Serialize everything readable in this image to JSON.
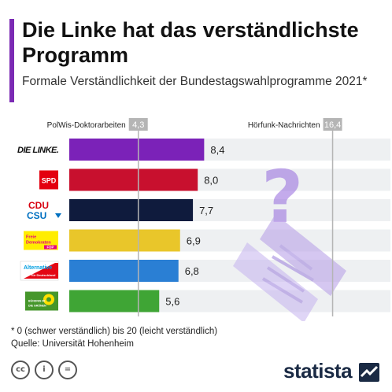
{
  "header": {
    "title": "Die Linke hat das verständlichste Programm",
    "subtitle": "Formale Verständlichkeit der Bundestagswahlprogramme 2021*"
  },
  "chart_data": {
    "type": "bar",
    "orientation": "horizontal",
    "categories": [
      "Die Linke",
      "SPD",
      "CDU/CSU",
      "FDP",
      "AfD",
      "Bündnis 90/Die Grünen"
    ],
    "values": [
      8.4,
      8.0,
      7.7,
      6.9,
      6.8,
      5.6
    ],
    "value_labels": [
      "8,4",
      "8,0",
      "7,7",
      "6,9",
      "6,8",
      "5,6"
    ],
    "bar_colors": [
      "#7b22b8",
      "#c8102e",
      "#0f1b3d",
      "#e9c62a",
      "#2a7fd4",
      "#3fa535"
    ],
    "xlim": [
      0,
      20
    ],
    "reference_lines": [
      {
        "label": "PolWis-Doktorarbeiten",
        "value": 4.3,
        "value_label": "4,3"
      },
      {
        "label": "Hörfunk-Nachrichten",
        "value": 16.4,
        "value_label": "16,4"
      }
    ],
    "logos": {
      "linke": "DIE LINKE.",
      "spd": "SPD",
      "cdu": "CDU",
      "csu": "CSU",
      "fdp": "Freie Demokraten FDP",
      "afd": "Alternative für Deutschland",
      "gruene": "BÜNDNIS 90 DIE GRÜNEN"
    }
  },
  "footer": {
    "footnote": "* 0 (schwer verständlich) bis 20 (leicht verständlich)",
    "source": "Quelle: Universität Hohenheim",
    "brand": "statista",
    "license_icons": [
      "cc-icon",
      "attribution-icon",
      "no-derivatives-icon"
    ]
  }
}
